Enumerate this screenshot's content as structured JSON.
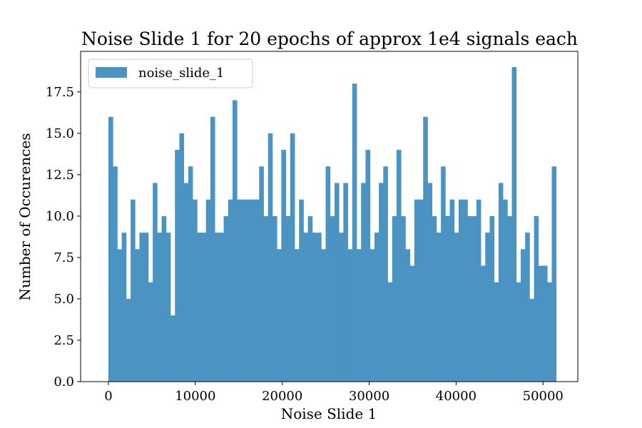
{
  "chart_data": {
    "type": "bar",
    "title": "Noise Slide 1 for 20 epochs of approx 1e4 signals each",
    "xlabel": "Noise Slide 1",
    "ylabel": "Number of Occurences",
    "xlim": [
      -3200,
      54000
    ],
    "ylim": [
      0,
      19.95
    ],
    "bin_start": 0,
    "bin_width": 510,
    "x_ticks": [
      0,
      10000,
      20000,
      30000,
      40000,
      50000
    ],
    "y_ticks": [
      0.0,
      2.5,
      5.0,
      7.5,
      10.0,
      12.5,
      15.0,
      17.5
    ],
    "legend_position": "upper-left",
    "color": "#4b93c3",
    "series": [
      {
        "name": "noise_slide_1",
        "values": [
          16,
          13,
          8,
          9,
          5,
          11,
          8,
          9,
          9,
          6,
          12,
          9,
          10,
          9,
          4,
          14,
          15,
          12,
          13,
          11,
          9,
          9,
          11,
          16,
          9,
          9,
          10,
          11,
          17,
          11,
          11,
          11,
          11,
          11,
          13,
          10,
          15,
          10,
          8,
          14,
          10,
          15,
          8,
          11,
          9,
          10,
          9,
          9,
          8,
          13,
          10,
          12,
          9,
          12,
          8,
          18,
          8,
          12,
          14,
          8,
          9,
          12,
          13,
          6,
          10,
          14,
          10,
          8,
          7,
          11,
          11,
          16,
          12,
          10,
          9,
          13,
          10,
          11,
          9,
          11,
          11,
          10,
          10,
          11,
          7,
          9,
          10,
          6,
          12,
          11,
          10,
          19,
          6,
          8,
          9,
          5,
          10,
          7,
          7,
          6,
          13
        ]
      }
    ]
  }
}
